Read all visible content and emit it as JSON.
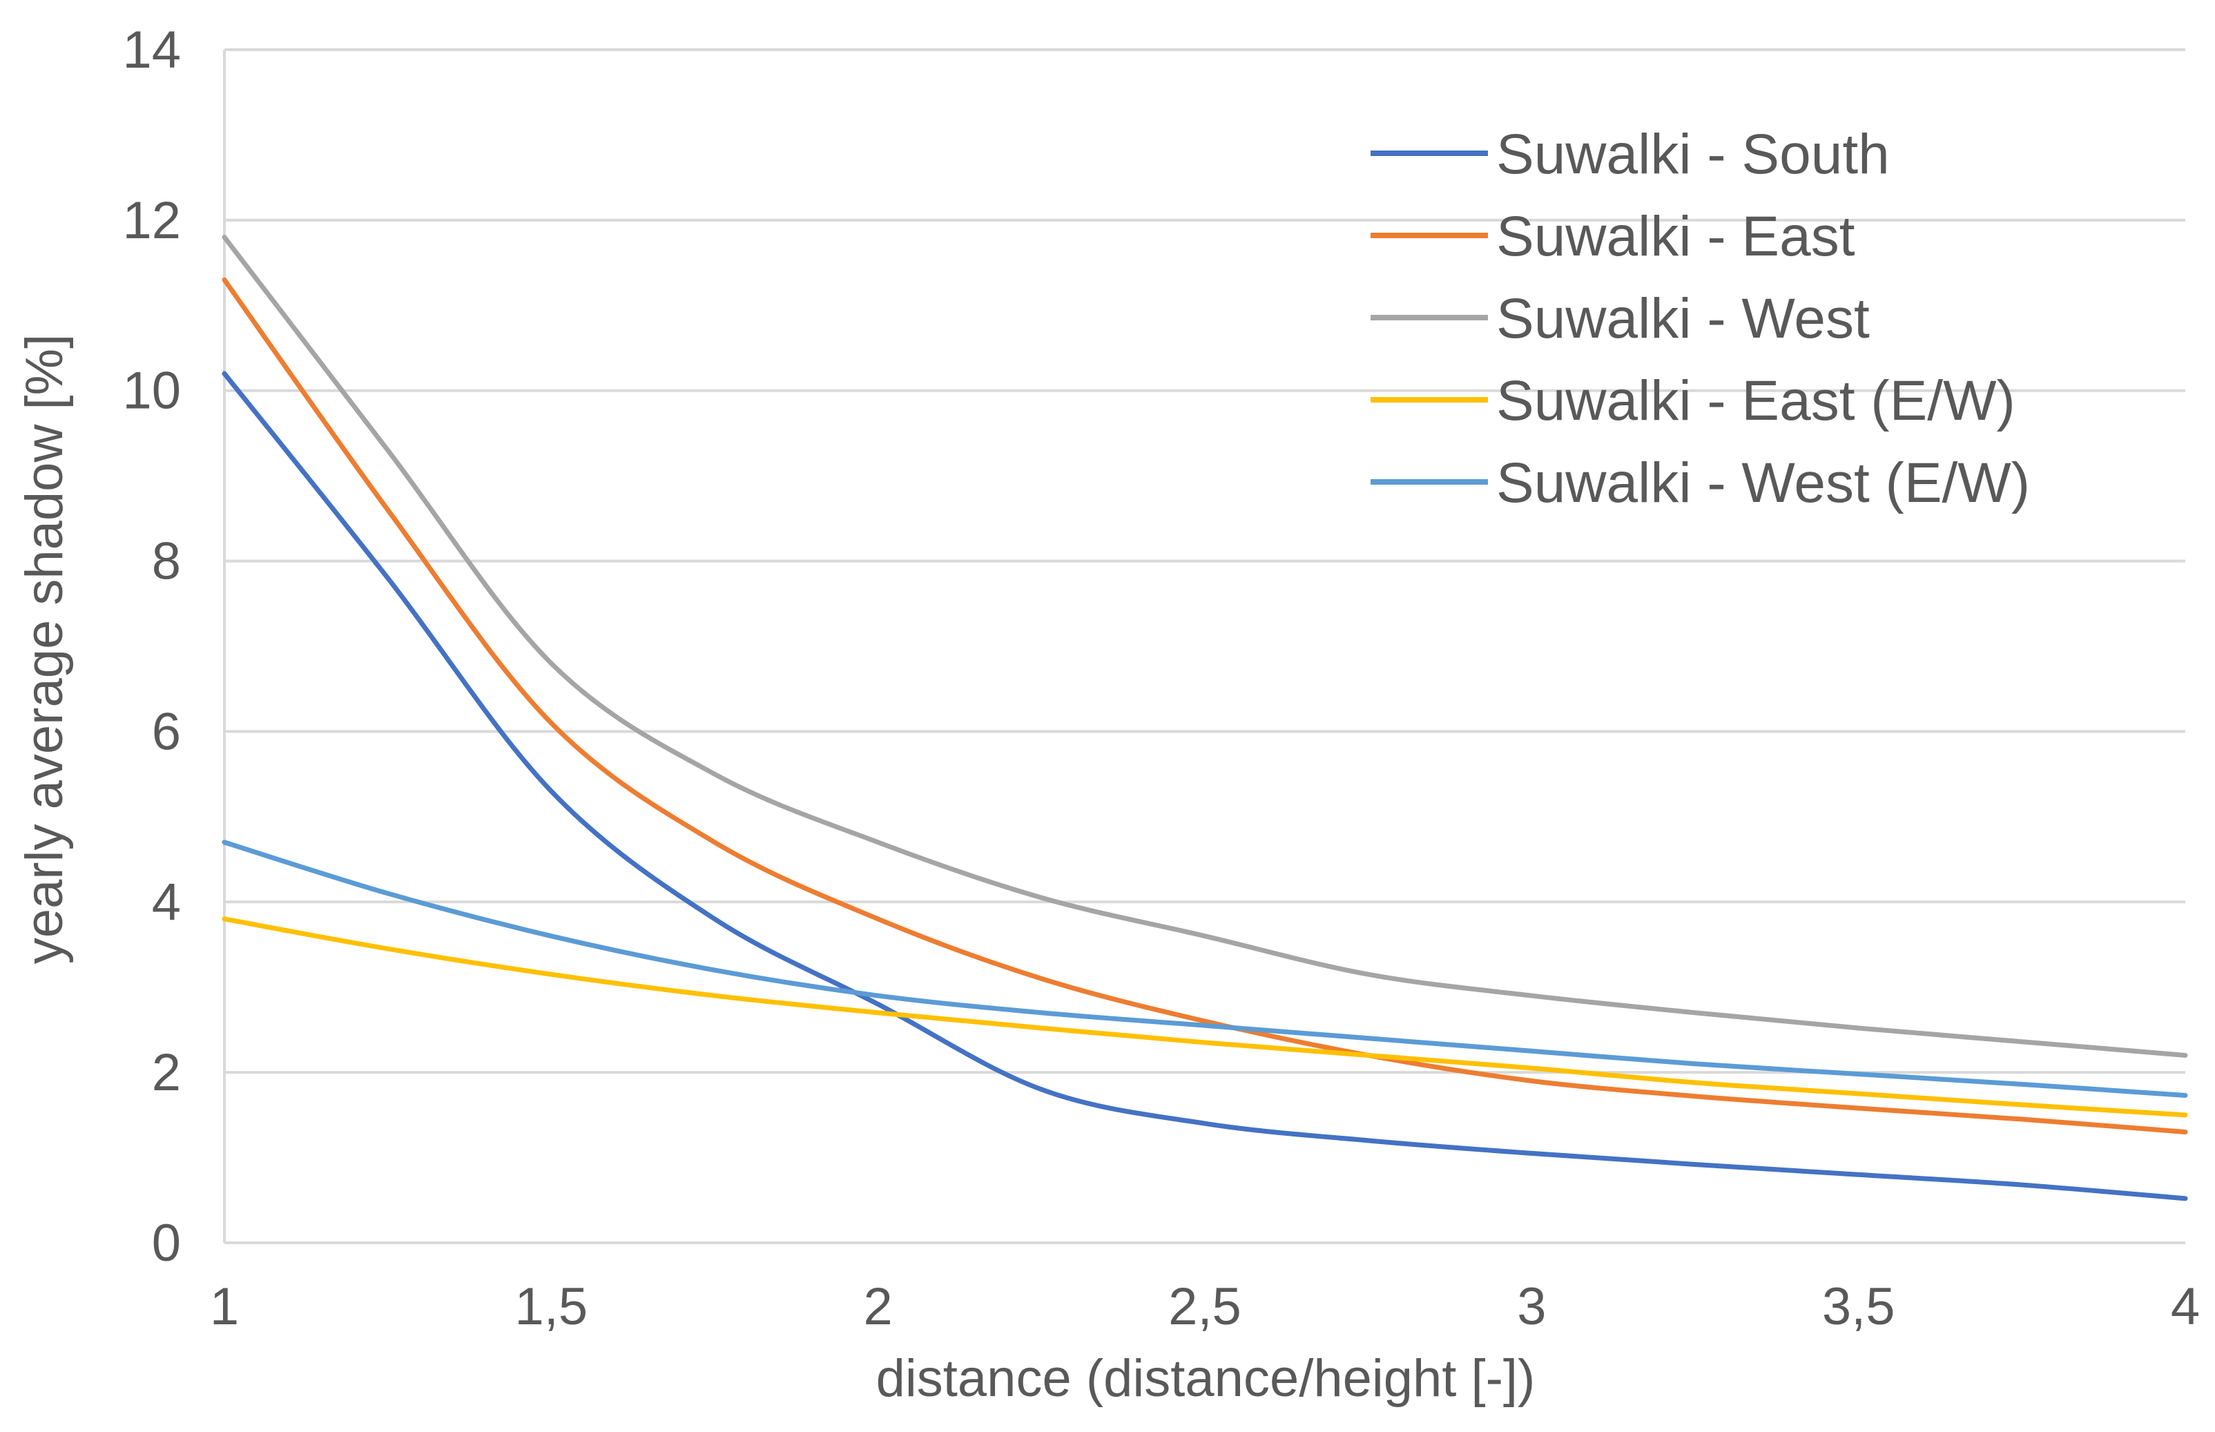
{
  "chart_data": {
    "type": "line",
    "title": "",
    "xlabel": "distance (distance/height [-])",
    "ylabel": "yearly average shadow [%]",
    "xlim": [
      1,
      4
    ],
    "ylim": [
      0,
      14
    ],
    "x_ticks": [
      1,
      1.5,
      2,
      2.5,
      3,
      3.5,
      4
    ],
    "x_tick_labels": [
      "1",
      "1,5",
      "2",
      "2,5",
      "3",
      "3,5",
      "4"
    ],
    "y_ticks": [
      0,
      2,
      4,
      6,
      8,
      10,
      12,
      14
    ],
    "y_tick_labels": [
      "0",
      "2",
      "4",
      "6",
      "8",
      "10",
      "12",
      "14"
    ],
    "grid": true,
    "legend_position": "top-right",
    "x": [
      1,
      1.25,
      1.5,
      1.75,
      2,
      2.25,
      2.5,
      2.75,
      3,
      3.25,
      3.5,
      3.75,
      4
    ],
    "series": [
      {
        "name": "Suwalki - South",
        "color": "#4472C4",
        "values": [
          10.2,
          7.8,
          5.3,
          3.8,
          2.8,
          1.8,
          1.4,
          1.2,
          1.05,
          0.92,
          0.8,
          0.68,
          0.52
        ]
      },
      {
        "name": "Suwalki - East",
        "color": "#ED7D31",
        "values": [
          11.3,
          8.6,
          6.1,
          4.7,
          3.8,
          3.1,
          2.6,
          2.2,
          1.9,
          1.72,
          1.58,
          1.45,
          1.3
        ]
      },
      {
        "name": "Suwalki - West",
        "color": "#A5A5A5",
        "values": [
          11.8,
          9.3,
          6.8,
          5.5,
          4.7,
          4.05,
          3.6,
          3.15,
          2.9,
          2.7,
          2.52,
          2.36,
          2.2
        ]
      },
      {
        "name": "Suwalki - East (E/W)",
        "color": "#FFC000",
        "values": [
          3.8,
          3.45,
          3.15,
          2.9,
          2.7,
          2.52,
          2.35,
          2.2,
          2.05,
          1.88,
          1.75,
          1.62,
          1.5
        ]
      },
      {
        "name": "Suwalki - West (E/W)",
        "color": "#5B9BD5",
        "values": [
          4.7,
          4.1,
          3.6,
          3.2,
          2.9,
          2.7,
          2.55,
          2.4,
          2.25,
          2.1,
          1.98,
          1.86,
          1.73
        ]
      }
    ]
  }
}
